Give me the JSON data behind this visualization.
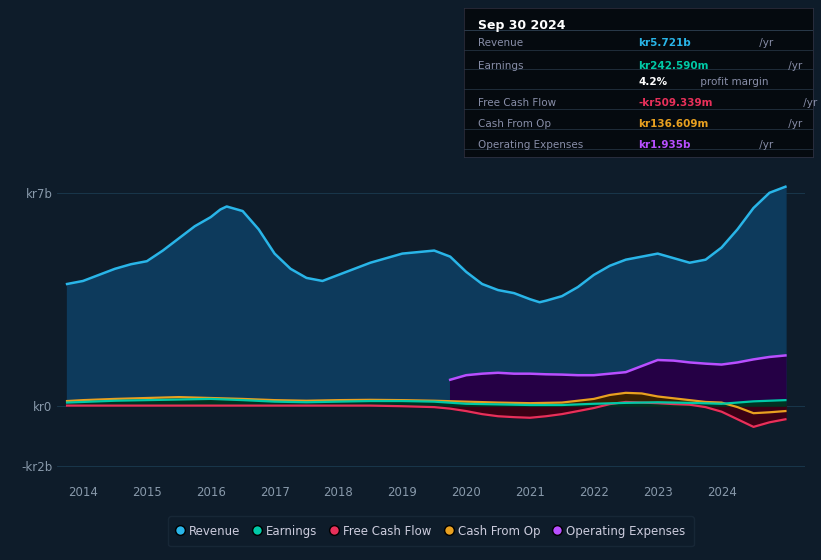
{
  "bg_color": "#0e1c2a",
  "plot_bg_color": "#0e1c2a",
  "grid_color": "#1a3a50",
  "ylim": [
    -2500000000.0,
    8000000000.0
  ],
  "yticks": [
    -2000000000.0,
    0,
    7000000000.0
  ],
  "ytick_labels": [
    "-kr2b",
    "kr0",
    "kr7b"
  ],
  "xlim": [
    2013.6,
    2025.3
  ],
  "xtick_years": [
    2014,
    2015,
    2016,
    2017,
    2018,
    2019,
    2020,
    2021,
    2022,
    2023,
    2024
  ],
  "revenue": {
    "color": "#29b5e8",
    "fill_color": "#0d3a5c",
    "x": [
      2013.75,
      2014.0,
      2014.25,
      2014.5,
      2014.75,
      2015.0,
      2015.25,
      2015.5,
      2015.75,
      2016.0,
      2016.15,
      2016.25,
      2016.5,
      2016.75,
      2017.0,
      2017.25,
      2017.5,
      2017.75,
      2018.0,
      2018.25,
      2018.5,
      2018.75,
      2019.0,
      2019.25,
      2019.5,
      2019.75,
      2020.0,
      2020.25,
      2020.5,
      2020.75,
      2021.0,
      2021.15,
      2021.25,
      2021.5,
      2021.75,
      2022.0,
      2022.25,
      2022.5,
      2022.75,
      2023.0,
      2023.25,
      2023.5,
      2023.75,
      2024.0,
      2024.25,
      2024.5,
      2024.75,
      2025.0
    ],
    "y": [
      4000000000.0,
      4100000000.0,
      4300000000.0,
      4500000000.0,
      4650000000.0,
      4750000000.0,
      5100000000.0,
      5500000000.0,
      5900000000.0,
      6200000000.0,
      6450000000.0,
      6550000000.0,
      6400000000.0,
      5800000000.0,
      5000000000.0,
      4500000000.0,
      4200000000.0,
      4100000000.0,
      4300000000.0,
      4500000000.0,
      4700000000.0,
      4850000000.0,
      5000000000.0,
      5050000000.0,
      5100000000.0,
      4900000000.0,
      4400000000.0,
      4000000000.0,
      3800000000.0,
      3700000000.0,
      3500000000.0,
      3400000000.0,
      3450000000.0,
      3600000000.0,
      3900000000.0,
      4300000000.0,
      4600000000.0,
      4800000000.0,
      4900000000.0,
      5000000000.0,
      4850000000.0,
      4700000000.0,
      4800000000.0,
      5200000000.0,
      5800000000.0,
      6500000000.0,
      7000000000.0,
      7200000000.0
    ]
  },
  "earnings": {
    "color": "#00c9a7",
    "fill_color": "#003322",
    "x": [
      2013.75,
      2014.0,
      2014.5,
      2015.0,
      2015.5,
      2016.0,
      2016.5,
      2017.0,
      2017.5,
      2018.0,
      2018.5,
      2019.0,
      2019.5,
      2020.0,
      2020.5,
      2021.0,
      2021.5,
      2022.0,
      2022.5,
      2023.0,
      2023.5,
      2024.0,
      2024.5,
      2025.0
    ],
    "y": [
      100000000.0,
      120000000.0,
      160000000.0,
      180000000.0,
      200000000.0,
      220000000.0,
      180000000.0,
      130000000.0,
      110000000.0,
      130000000.0,
      150000000.0,
      150000000.0,
      130000000.0,
      60000000.0,
      40000000.0,
      20000000.0,
      20000000.0,
      60000000.0,
      90000000.0,
      110000000.0,
      90000000.0,
      60000000.0,
      140000000.0,
      180000000.0
    ]
  },
  "free_cash_flow": {
    "color": "#e8305a",
    "fill_color": "#3a0015",
    "x": [
      2013.75,
      2014.0,
      2014.5,
      2015.0,
      2015.5,
      2016.0,
      2016.5,
      2017.0,
      2017.5,
      2018.0,
      2018.5,
      2019.0,
      2019.5,
      2019.75,
      2020.0,
      2020.25,
      2020.5,
      2020.75,
      2021.0,
      2021.25,
      2021.5,
      2021.75,
      2022.0,
      2022.25,
      2022.5,
      2022.75,
      2023.0,
      2023.25,
      2023.5,
      2023.75,
      2024.0,
      2024.25,
      2024.5,
      2024.75,
      2025.0
    ],
    "y": [
      0.0,
      0.0,
      0.0,
      0.0,
      0.0,
      0.0,
      0.0,
      0.0,
      0.0,
      0.0,
      0.0,
      -20000000.0,
      -50000000.0,
      -100000000.0,
      -180000000.0,
      -280000000.0,
      -350000000.0,
      -380000000.0,
      -400000000.0,
      -350000000.0,
      -280000000.0,
      -180000000.0,
      -80000000.0,
      50000000.0,
      120000000.0,
      100000000.0,
      80000000.0,
      50000000.0,
      30000000.0,
      -50000000.0,
      -200000000.0,
      -450000000.0,
      -700000000.0,
      -550000000.0,
      -450000000.0
    ]
  },
  "cash_from_op": {
    "color": "#e8a020",
    "fill_color": "#3a2000",
    "x": [
      2013.75,
      2014.0,
      2014.5,
      2015.0,
      2015.5,
      2016.0,
      2016.5,
      2017.0,
      2017.5,
      2018.0,
      2018.5,
      2019.0,
      2019.5,
      2020.0,
      2020.5,
      2021.0,
      2021.5,
      2022.0,
      2022.25,
      2022.5,
      2022.75,
      2023.0,
      2023.5,
      2023.75,
      2024.0,
      2024.25,
      2024.5,
      2024.75,
      2025.0
    ],
    "y": [
      150000000.0,
      180000000.0,
      220000000.0,
      250000000.0,
      280000000.0,
      250000000.0,
      220000000.0,
      180000000.0,
      160000000.0,
      180000000.0,
      190000000.0,
      180000000.0,
      160000000.0,
      130000000.0,
      100000000.0,
      80000000.0,
      100000000.0,
      220000000.0,
      350000000.0,
      420000000.0,
      400000000.0,
      300000000.0,
      180000000.0,
      120000000.0,
      100000000.0,
      -50000000.0,
      -250000000.0,
      -220000000.0,
      -180000000.0
    ]
  },
  "operating_expenses": {
    "color": "#b84fff",
    "fill_color": "#250045",
    "x": [
      2019.75,
      2020.0,
      2020.25,
      2020.5,
      2020.75,
      2021.0,
      2021.25,
      2021.5,
      2021.75,
      2022.0,
      2022.25,
      2022.5,
      2022.75,
      2023.0,
      2023.25,
      2023.5,
      2023.75,
      2024.0,
      2024.25,
      2024.5,
      2024.75,
      2025.0
    ],
    "y": [
      850000000.0,
      1000000000.0,
      1050000000.0,
      1080000000.0,
      1050000000.0,
      1050000000.0,
      1030000000.0,
      1020000000.0,
      1000000000.0,
      1000000000.0,
      1050000000.0,
      1100000000.0,
      1300000000.0,
      1500000000.0,
      1480000000.0,
      1420000000.0,
      1380000000.0,
      1350000000.0,
      1420000000.0,
      1520000000.0,
      1600000000.0,
      1650000000.0
    ]
  },
  "legend": [
    {
      "label": "Revenue",
      "color": "#29b5e8"
    },
    {
      "label": "Earnings",
      "color": "#00c9a7"
    },
    {
      "label": "Free Cash Flow",
      "color": "#e8305a"
    },
    {
      "label": "Cash From Op",
      "color": "#e8a020"
    },
    {
      "label": "Operating Expenses",
      "color": "#b84fff"
    }
  ],
  "info_box": {
    "date": "Sep 30 2024",
    "rows": [
      {
        "label": "Revenue",
        "value": "kr5.721b",
        "value_color": "#29b5e8",
        "suffix": " /yr"
      },
      {
        "label": "Earnings",
        "value": "kr242.590m",
        "value_color": "#00c9a7",
        "suffix": " /yr"
      },
      {
        "label": "",
        "value": "4.2%",
        "value_color": "#ffffff",
        "suffix": " profit margin"
      },
      {
        "label": "Free Cash Flow",
        "value": "-kr509.339m",
        "value_color": "#e8305a",
        "suffix": " /yr"
      },
      {
        "label": "Cash From Op",
        "value": "kr136.609m",
        "value_color": "#e8a020",
        "suffix": " /yr"
      },
      {
        "label": "Operating Expenses",
        "value": "kr1.935b",
        "value_color": "#b84fff",
        "suffix": " /yr"
      }
    ]
  }
}
